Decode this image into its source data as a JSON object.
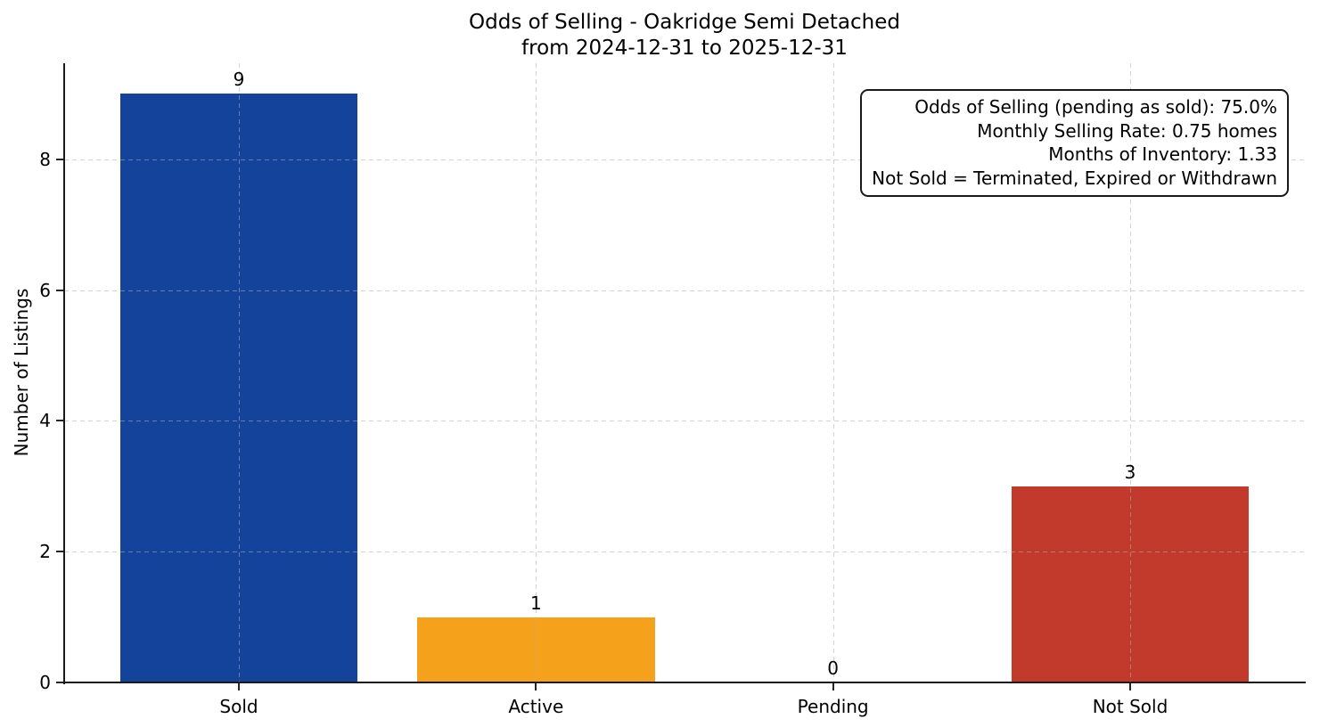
{
  "figure": {
    "background": "#ffffff",
    "text_color": "#000000",
    "spine_color": "#1a1a1a",
    "grid_color": "#bcbcbc"
  },
  "chart_data": {
    "type": "bar",
    "title_lines": [
      "Odds of Selling - Oakridge Semi Detached",
      "from 2024-12-31 to 2025-12-31"
    ],
    "categories": [
      "Sold",
      "Active",
      "Pending",
      "Not Sold"
    ],
    "values": [
      9,
      1,
      0,
      3
    ],
    "bar_colors": [
      "#14439B",
      "#F5A11B",
      "#808080",
      "#C23A2B"
    ],
    "value_labels": [
      "9",
      "1",
      "0",
      "3"
    ],
    "xlabel": "",
    "ylabel": "Number of Listings",
    "yticks": [
      0,
      2,
      4,
      6,
      8
    ],
    "ylim": [
      0,
      9.47
    ],
    "grid": "dashed horizontal and vertical, drawn over bars",
    "legend": null,
    "annotation_box": {
      "lines": [
        "Odds of Selling (pending as sold): 75.0%",
        "Monthly Selling Rate: 0.75 homes",
        "Months of Inventory: 1.33",
        "Not Sold = Terminated, Expired or Withdrawn"
      ]
    }
  }
}
